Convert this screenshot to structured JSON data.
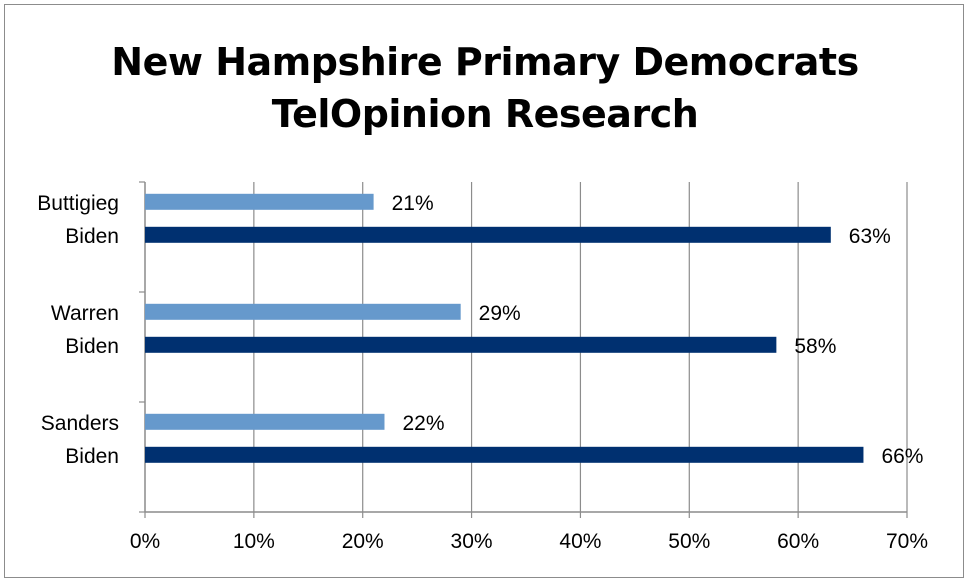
{
  "chart_data": {
    "type": "bar",
    "orientation": "horizontal",
    "title_lines": [
      "New Hampshire Primary Democrats",
      "TelOpinion Research"
    ],
    "groups": [
      {
        "bars": [
          {
            "label": "Buttigieg",
            "value": 21,
            "value_label": "21%",
            "color": "#6699cc"
          },
          {
            "label": "Biden",
            "value": 63,
            "value_label": "63%",
            "color": "#003070"
          }
        ]
      },
      {
        "bars": [
          {
            "label": "Warren",
            "value": 29,
            "value_label": "29%",
            "color": "#6699cc"
          },
          {
            "label": "Biden",
            "value": 58,
            "value_label": "58%",
            "color": "#003070"
          }
        ]
      },
      {
        "bars": [
          {
            "label": "Sanders",
            "value": 22,
            "value_label": "22%",
            "color": "#6699cc"
          },
          {
            "label": "Biden",
            "value": 66,
            "value_label": "66%",
            "color": "#003070"
          }
        ]
      }
    ],
    "xlim": [
      0,
      70
    ],
    "xticks": [
      0,
      10,
      20,
      30,
      40,
      50,
      60,
      70
    ],
    "xtick_labels": [
      "0%",
      "10%",
      "20%",
      "30%",
      "40%",
      "50%",
      "60%",
      "70%"
    ],
    "grid": true,
    "legend": "none"
  }
}
